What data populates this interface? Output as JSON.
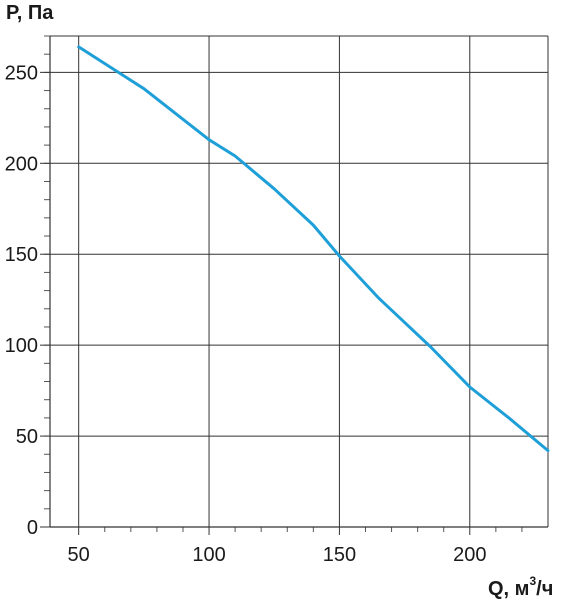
{
  "chart_data": {
    "type": "line",
    "ylabel": "P, Па",
    "xlabel_main": "Q, м",
    "xlabel_sup": "3",
    "xlabel_tail": "/ч",
    "xlim": [
      39,
      230
    ],
    "ylim": [
      0,
      270
    ],
    "x_ticks": [
      50,
      100,
      150,
      200
    ],
    "y_ticks": [
      0,
      50,
      100,
      150,
      200,
      250
    ],
    "x_tick_labels": [
      "50",
      "100",
      "150",
      "200"
    ],
    "y_tick_labels": [
      "0",
      "50",
      "100",
      "150",
      "200",
      "250"
    ],
    "grid": true,
    "series": [
      {
        "color": "#1e9fd8",
        "x": [
          50,
          75,
          100,
          110,
          125,
          140,
          150,
          165,
          185,
          200,
          215,
          230
        ],
        "y": [
          264,
          241,
          213,
          204,
          186,
          166,
          149,
          126,
          99,
          77,
          60,
          42
        ]
      }
    ]
  }
}
